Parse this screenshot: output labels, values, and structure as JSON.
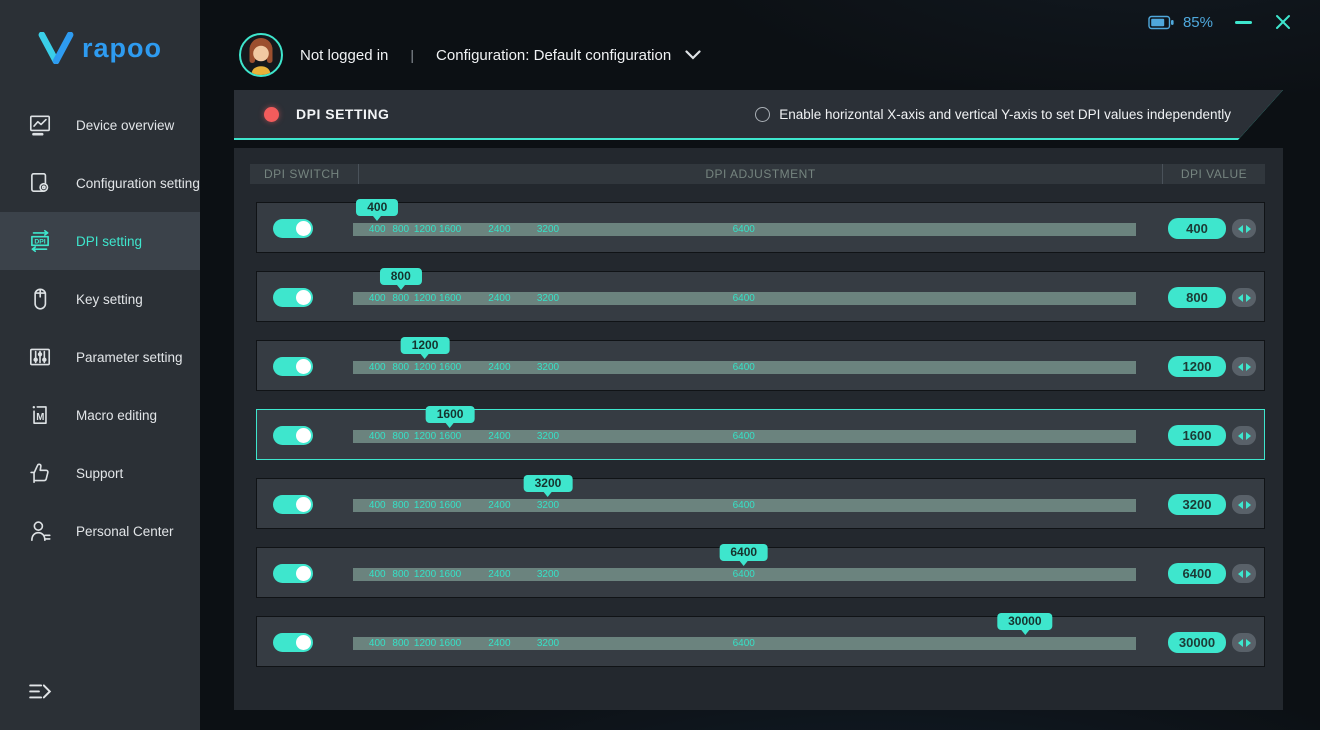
{
  "window": {
    "battery_level": "85%"
  },
  "topbar": {
    "login_status": "Not logged in",
    "separator": "|",
    "configuration": "Configuration: Default configuration"
  },
  "sidebar": {
    "brand": "rapoo",
    "items": [
      {
        "id": "device-overview",
        "label": "Device overview",
        "icon": "device-overview-icon",
        "selected": false
      },
      {
        "id": "configuration-setting",
        "label": "Configuration setting",
        "icon": "configuration-gear-icon",
        "selected": false
      },
      {
        "id": "dpi-setting",
        "label": "DPI setting",
        "icon": "dpi-icon",
        "selected": true
      },
      {
        "id": "key-setting",
        "label": "Key setting",
        "icon": "mouse-icon",
        "selected": false
      },
      {
        "id": "parameter-setting",
        "label": "Parameter setting",
        "icon": "sliders-icon",
        "selected": false
      },
      {
        "id": "macro-editing",
        "label": "Macro editing",
        "icon": "macro-icon",
        "selected": false
      },
      {
        "id": "support",
        "label": "Support",
        "icon": "thumbs-up-icon",
        "selected": false
      },
      {
        "id": "personal-center",
        "label": "Personal Center",
        "icon": "person-icon",
        "selected": false
      }
    ]
  },
  "dpi_panel": {
    "title": "DPI SETTING",
    "independent_option_label": "Enable horizontal X-axis and vertical Y-axis to set DPI values independently",
    "independent_option_checked": false,
    "columns": [
      "DPI SWITCH",
      "DPI ADJUSTMENT",
      "DPI VALUE"
    ],
    "slider_ticks": [
      {
        "label": "400",
        "percent": 3.1
      },
      {
        "label": "800",
        "percent": 6.1
      },
      {
        "label": "1200",
        "percent": 9.2
      },
      {
        "label": "1600",
        "percent": 12.4
      },
      {
        "label": "2400",
        "percent": 18.7
      },
      {
        "label": "3200",
        "percent": 24.9
      },
      {
        "label": "6400",
        "percent": 49.9
      }
    ],
    "rows": [
      {
        "value": "400",
        "enabled": true,
        "selected": false,
        "percent": 3.1
      },
      {
        "value": "800",
        "enabled": true,
        "selected": false,
        "percent": 6.1
      },
      {
        "value": "1200",
        "enabled": true,
        "selected": false,
        "percent": 9.2
      },
      {
        "value": "1600",
        "enabled": true,
        "selected": true,
        "percent": 12.4
      },
      {
        "value": "3200",
        "enabled": true,
        "selected": false,
        "percent": 24.9
      },
      {
        "value": "6400",
        "enabled": true,
        "selected": false,
        "percent": 49.9
      },
      {
        "value": "30000",
        "enabled": true,
        "selected": false,
        "percent": 85.8
      }
    ]
  },
  "colors": {
    "accent_teal": "#3EE6CD",
    "logo_blue": "#2E9BF0",
    "battery_blue": "#4FA8DC",
    "status_red": "#F25C5C"
  }
}
